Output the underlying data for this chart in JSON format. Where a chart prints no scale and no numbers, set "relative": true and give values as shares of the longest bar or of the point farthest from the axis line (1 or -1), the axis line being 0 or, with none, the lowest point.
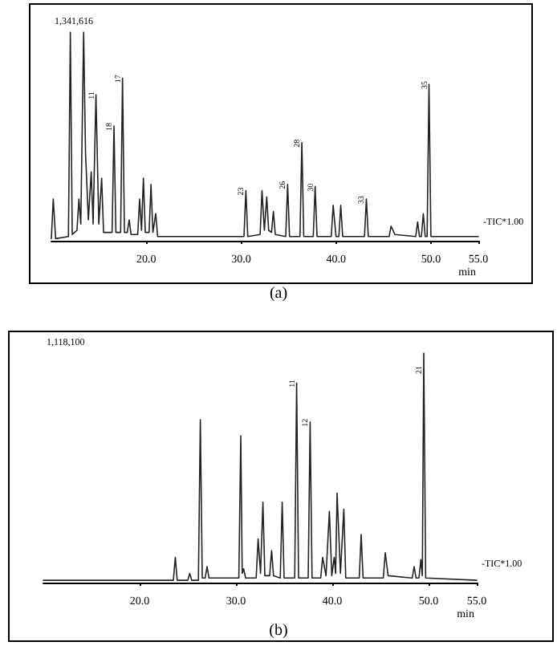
{
  "chart_data": [
    {
      "type": "line",
      "title": "(a)",
      "xlabel": "min",
      "relative": true,
      "color": "#222222",
      "xlim": [
        10,
        55
      ],
      "xticks": [
        {
          "value": 20,
          "label": "20.0"
        },
        {
          "value": 30,
          "label": "30.0"
        },
        {
          "value": 40,
          "label": "40.0"
        },
        {
          "value": 50,
          "label": "50.0"
        },
        {
          "value": 55,
          "label": "55.0"
        }
      ],
      "tick_labels": "x",
      "grid": false,
      "marker": "none",
      "x": [
        10,
        10.2,
        10.45,
        11.8,
        12.0,
        12.2,
        12.7,
        12.9,
        13.1,
        13.4,
        13.6,
        13.9,
        14.2,
        14.4,
        14.7,
        15.0,
        15.3,
        15.5,
        16.4,
        16.6,
        16.8,
        17.3,
        17.5,
        17.7,
        18.0,
        18.2,
        18.4,
        19.1,
        19.3,
        19.5,
        19.7,
        19.9,
        20.3,
        20.5,
        20.7,
        21.0,
        21.2,
        25,
        30.3,
        30.5,
        30.7,
        32.0,
        32.2,
        32.45,
        32.7,
        32.9,
        33.2,
        33.4,
        33.6,
        34.7,
        34.9,
        35.1,
        36.2,
        36.4,
        36.6,
        37.6,
        37.8,
        38.0,
        39.5,
        39.7,
        40.0,
        40.3,
        40.5,
        40.7,
        43.0,
        43.2,
        43.4,
        45.6,
        45.8,
        46.2,
        48.4,
        48.6,
        48.8,
        49.0,
        49.2,
        49.4,
        49.6,
        49.8,
        50.0,
        55
      ],
      "values": [
        0.01,
        0.2,
        0.01,
        0.02,
        1,
        0.03,
        0.05,
        0.2,
        0.08,
        1,
        0.42,
        0.1,
        0.33,
        0.08,
        0.7,
        0.08,
        0.3,
        0.04,
        0.04,
        0.55,
        0.04,
        0.04,
        0.78,
        0.04,
        0.04,
        0.1,
        0.03,
        0.03,
        0.2,
        0.05,
        0.3,
        0.04,
        0.04,
        0.27,
        0.04,
        0.13,
        0.02,
        0.02,
        0.02,
        0.24,
        0.02,
        0.03,
        0.24,
        0.05,
        0.21,
        0.05,
        0.04,
        0.14,
        0.03,
        0.02,
        0.27,
        0.02,
        0.02,
        0.47,
        0.02,
        0.02,
        0.26,
        0.02,
        0.02,
        0.17,
        0.02,
        0.02,
        0.17,
        0.02,
        0.02,
        0.2,
        0.02,
        0.02,
        0.07,
        0.03,
        0.02,
        0.09,
        0.02,
        0.02,
        0.13,
        0.02,
        0.02,
        0.75,
        0.02,
        0.02
      ],
      "annotations": [
        "1,341,616",
        "-TIC*1.00",
        {
          "text": "11",
          "x": 14.7,
          "y": 0.7
        },
        {
          "text": "18",
          "x": 16.6,
          "y": 0.55
        },
        {
          "text": "17",
          "x": 17.5,
          "y": 0.78
        },
        {
          "text": "23",
          "x": 30.5,
          "y": 0.24
        },
        {
          "text": "26",
          "x": 34.9,
          "y": 0.27
        },
        {
          "text": "28",
          "x": 36.4,
          "y": 0.47
        },
        {
          "text": "30",
          "x": 37.8,
          "y": 0.26
        },
        {
          "text": "33",
          "x": 43.2,
          "y": 0.2
        },
        {
          "text": "35",
          "x": 49.8,
          "y": 0.75
        }
      ]
    },
    {
      "type": "line",
      "title": "(b)",
      "xlabel": "min",
      "relative": true,
      "color": "#222222",
      "xlim": [
        10,
        55
      ],
      "xticks": [
        {
          "value": 20,
          "label": "20.0"
        },
        {
          "value": 30,
          "label": "30.0"
        },
        {
          "value": 40,
          "label": "40.0"
        },
        {
          "value": 50,
          "label": "50.0"
        },
        {
          "value": 55,
          "label": "55.0"
        }
      ],
      "tick_labels": "x",
      "grid": false,
      "marker": "none",
      "x": [
        10,
        23.5,
        23.7,
        23.9,
        25.0,
        25.2,
        25.4,
        26.1,
        26.3,
        26.5,
        26.8,
        27.0,
        27.2,
        30.3,
        30.5,
        30.65,
        30.8,
        31.0,
        32.1,
        32.3,
        32.55,
        32.8,
        33.0,
        33.5,
        33.7,
        33.9,
        34.6,
        34.8,
        35.0,
        36.1,
        36.3,
        36.5,
        37.5,
        37.7,
        37.9,
        38.8,
        39.0,
        39.35,
        39.7,
        39.95,
        40.2,
        40.35,
        40.5,
        40.85,
        41.2,
        41.4,
        42.8,
        43.0,
        43.2,
        45.3,
        45.5,
        45.8,
        48.3,
        48.5,
        48.7,
        49.0,
        49.2,
        49.35,
        49.5,
        49.7,
        55
      ],
      "values": [
        0.01,
        0.01,
        0.11,
        0.01,
        0.01,
        0.04,
        0.01,
        0.01,
        0.71,
        0.02,
        0.02,
        0.07,
        0.02,
        0.02,
        0.64,
        0.04,
        0.06,
        0.02,
        0.02,
        0.19,
        0.04,
        0.35,
        0.03,
        0.03,
        0.14,
        0.03,
        0.02,
        0.35,
        0.02,
        0.02,
        0.87,
        0.02,
        0.02,
        0.7,
        0.02,
        0.02,
        0.11,
        0.03,
        0.31,
        0.03,
        0.11,
        0.04,
        0.39,
        0.04,
        0.32,
        0.02,
        0.02,
        0.21,
        0.02,
        0.02,
        0.13,
        0.03,
        0.02,
        0.07,
        0.02,
        0.02,
        0.1,
        0.03,
        1,
        0.02,
        0.01
      ],
      "annotations": [
        "1,118,100",
        "-TIC*1.00",
        {
          "text": "11",
          "x": 36.3,
          "y": 0.87
        },
        {
          "text": "12",
          "x": 37.7,
          "y": 0.7
        },
        {
          "text": "21",
          "x": 49.5,
          "y": 0.93
        }
      ]
    }
  ]
}
